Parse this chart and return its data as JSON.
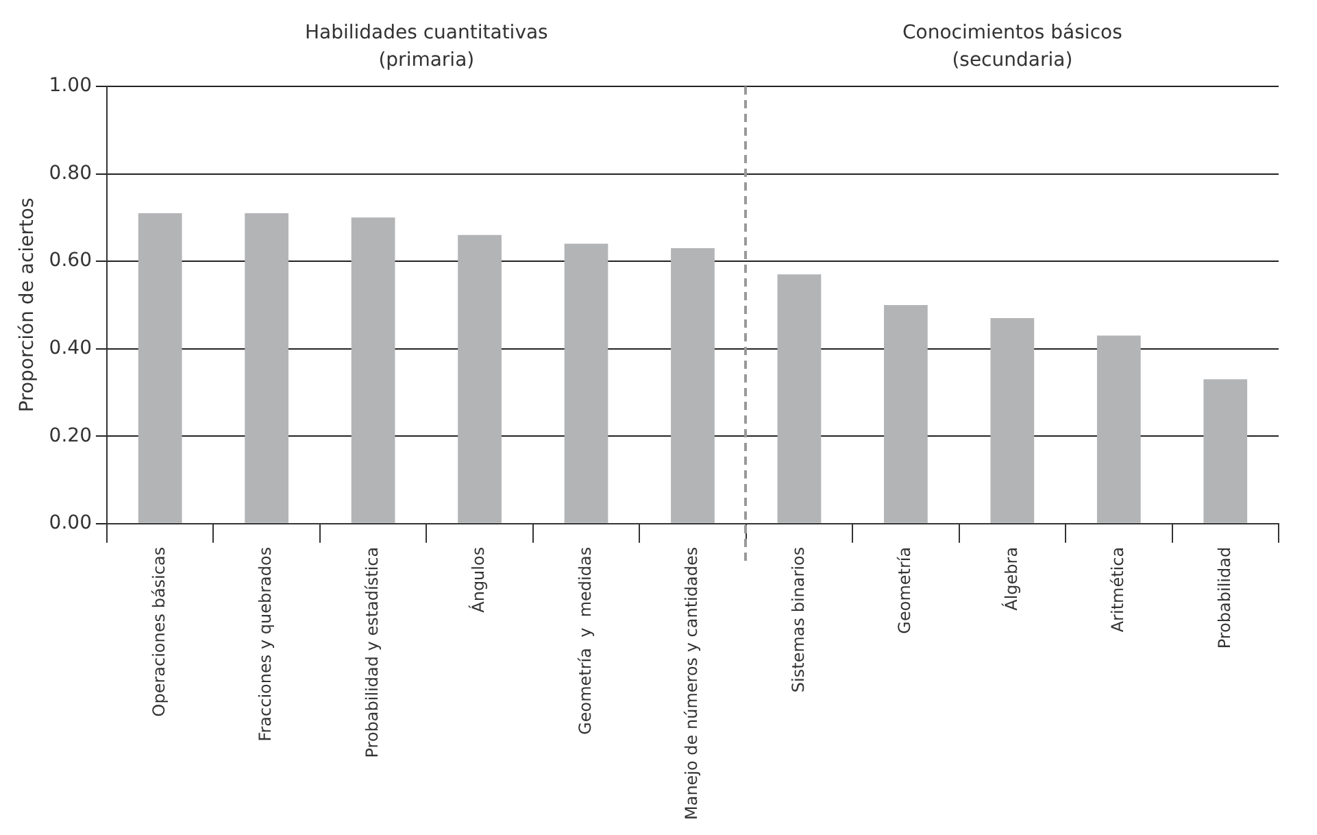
{
  "chart_data": {
    "type": "bar",
    "ylabel": "Proporción de aciertos",
    "categories": [
      "Operaciones básicas",
      "Fracciones y quebrados",
      "Probabilidad y estadística",
      "Ángulos",
      "Geometría  y  medidas",
      "Manejo de números y cantidades",
      "Sistemas binarios",
      "Geometría",
      "Álgebra",
      "Aritmética",
      "Probabilidad"
    ],
    "values": [
      0.71,
      0.71,
      0.7,
      0.66,
      0.64,
      0.63,
      0.57,
      0.5,
      0.47,
      0.43,
      0.33
    ],
    "color": "#b3b4b6",
    "ylim": [
      0,
      1
    ],
    "yticks": [
      {
        "value": 0,
        "label": "0.00"
      },
      {
        "value": 0.2,
        "label": "0.20"
      },
      {
        "value": 0.4,
        "label": "0.40"
      },
      {
        "value": 0.6,
        "label": "0.60"
      },
      {
        "value": 0.8,
        "label": "0.80"
      },
      {
        "value": 1,
        "label": "1.00"
      }
    ],
    "grid": "y",
    "legend": false,
    "annotations": [
      "Habilidades cuantitativas\n(primaria)",
      "Conocimientos básicos\n(secundaria)"
    ]
  }
}
